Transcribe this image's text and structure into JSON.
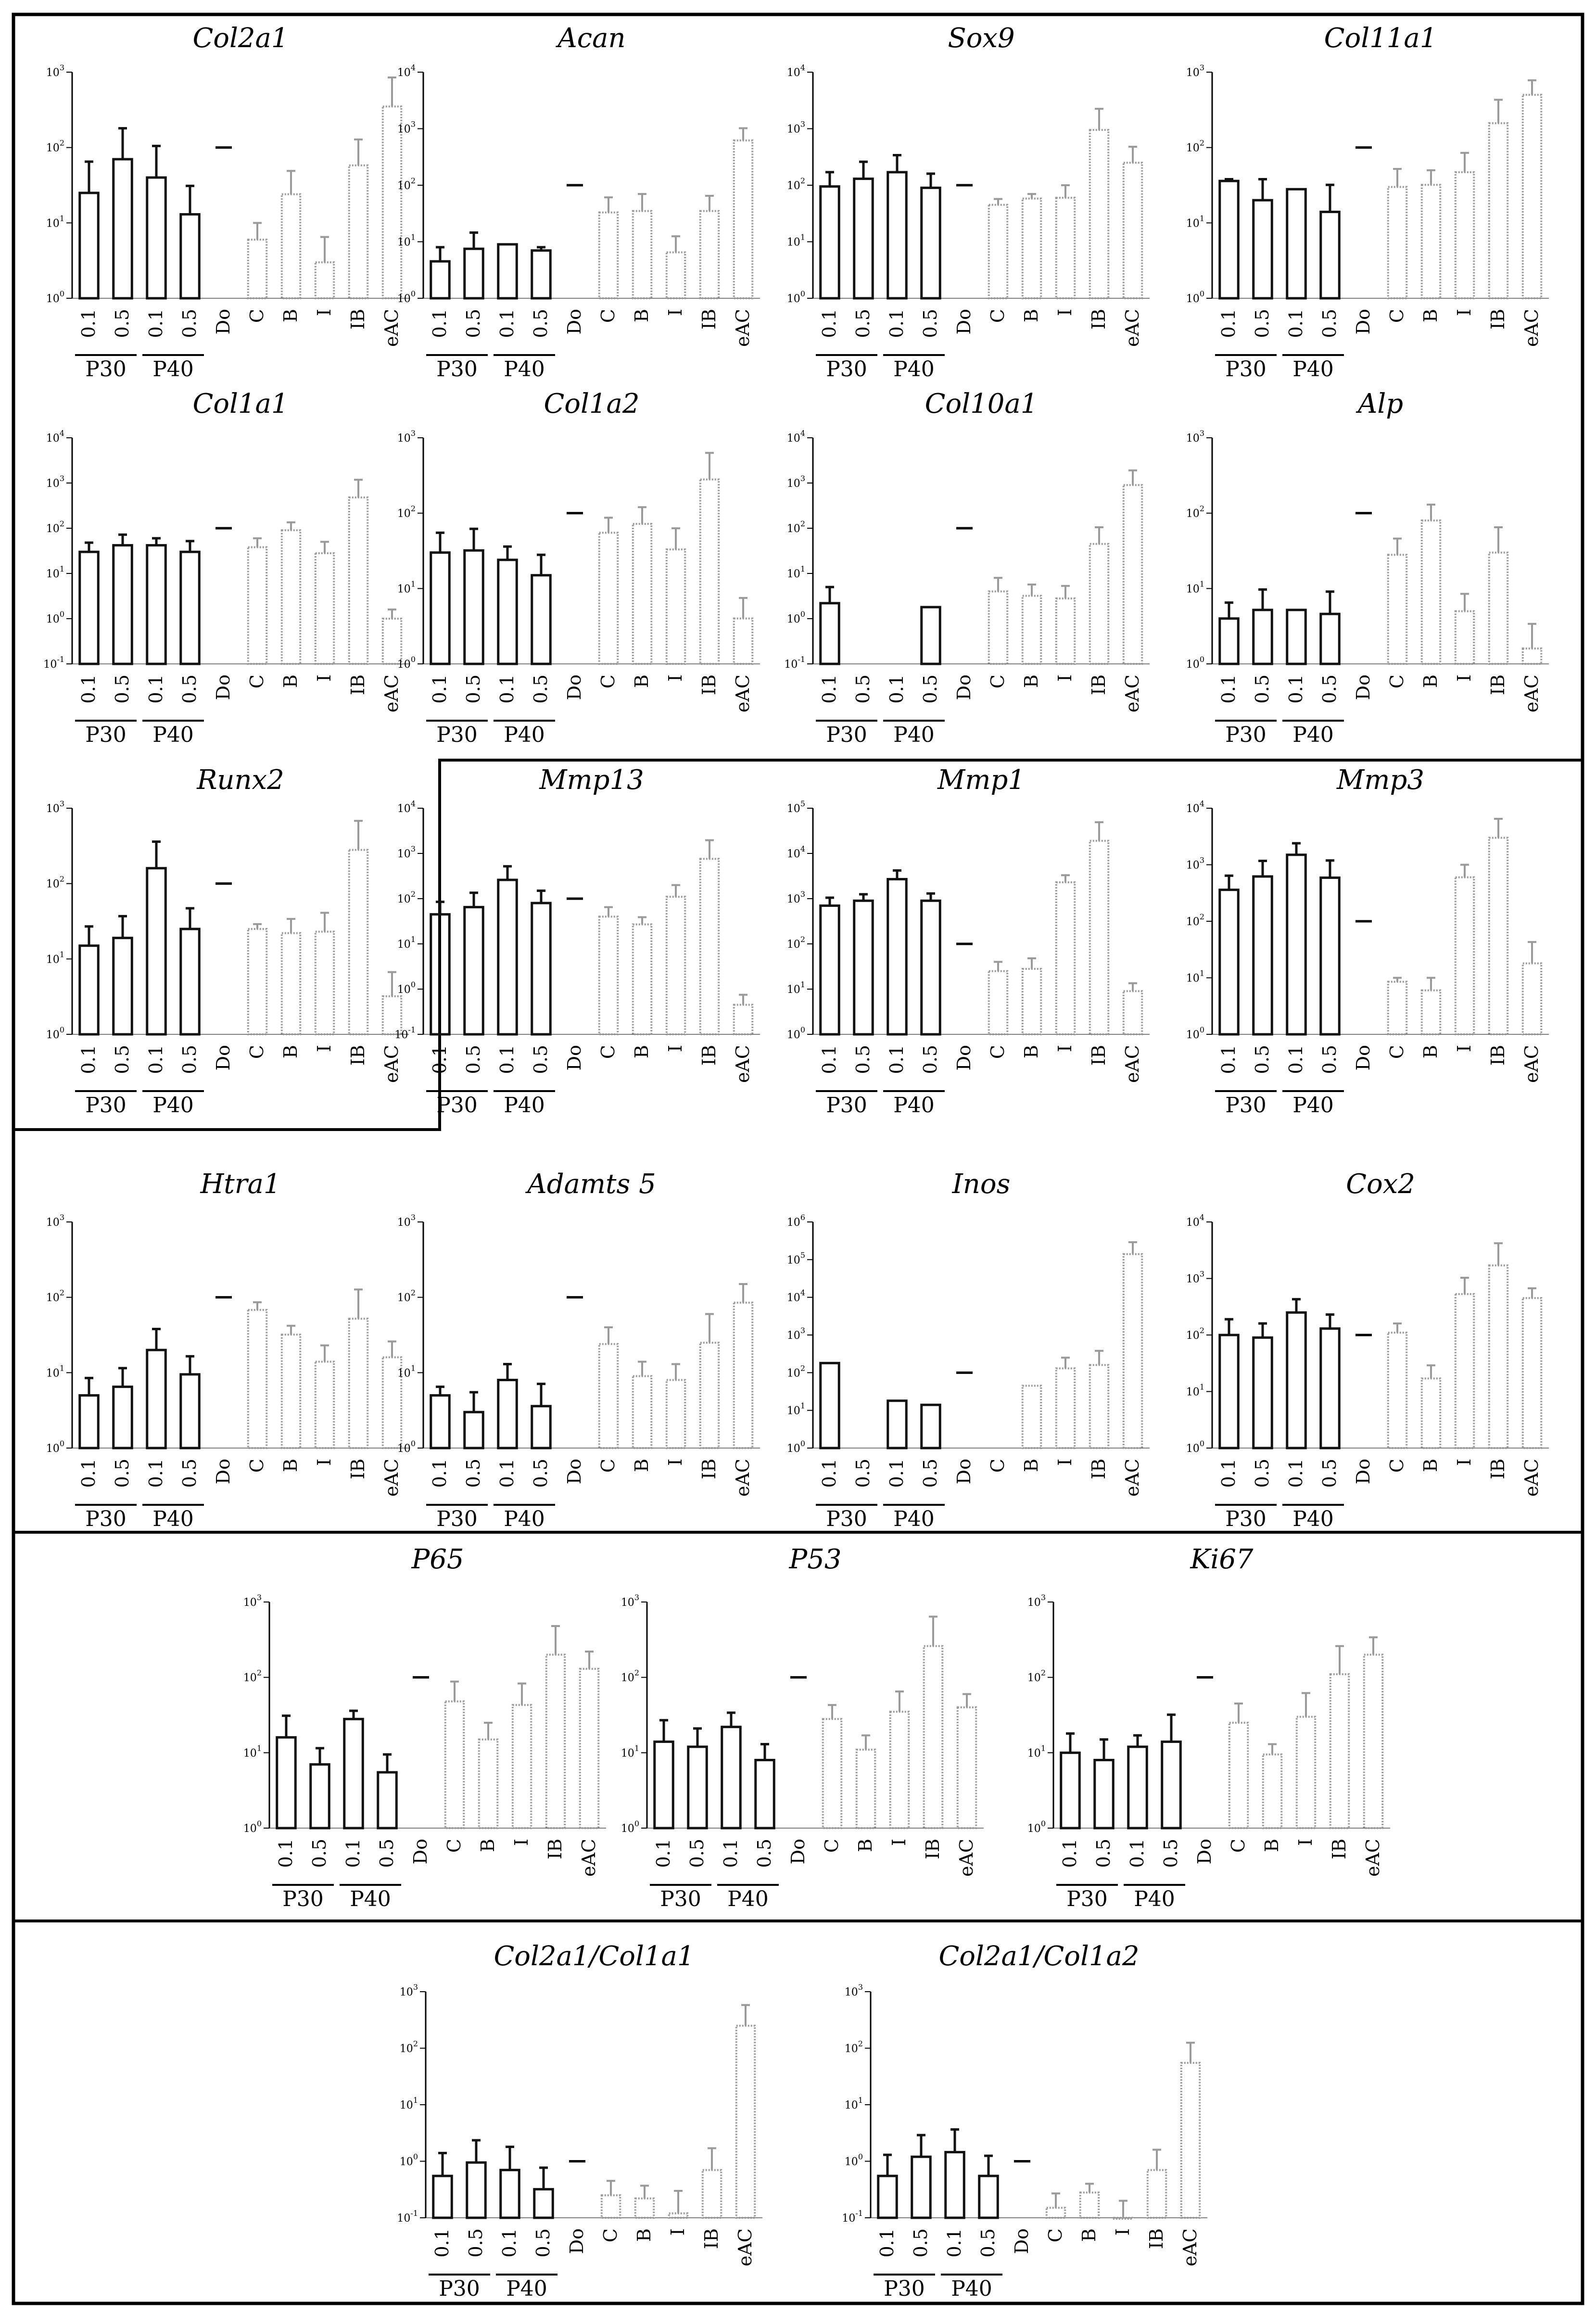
{
  "chart_data": [
    {
      "type": "bar",
      "title": "Col2a1",
      "scale": "log",
      "ylim_exp": [
        0,
        3
      ],
      "categories": [
        "0.1",
        "0.5",
        "0.1",
        "0.5",
        "Do",
        "C",
        "B",
        "I",
        "IB",
        "eAC"
      ],
      "groups": [
        "P30",
        "P40"
      ],
      "values": [
        25,
        70,
        40,
        13,
        100,
        6,
        24,
        3,
        58,
        350
      ],
      "errors": [
        40,
        110,
        65,
        18,
        0,
        4,
        25,
        3.5,
        70,
        500
      ]
    },
    {
      "type": "bar",
      "title": "Acan",
      "scale": "log",
      "ylim_exp": [
        0,
        4
      ],
      "categories": [
        "0.1",
        "0.5",
        "0.1",
        "0.5",
        "Do",
        "C",
        "B",
        "I",
        "IB",
        "eAC"
      ],
      "groups": [
        "P30",
        "P40"
      ],
      "values": [
        4.5,
        7.5,
        9,
        7,
        100,
        33,
        35,
        6.5,
        35,
        620
      ],
      "errors": [
        3.5,
        7,
        0,
        1,
        0,
        28,
        35,
        6,
        30,
        400
      ]
    },
    {
      "type": "bar",
      "title": "Sox9",
      "scale": "log",
      "ylim_exp": [
        0,
        4
      ],
      "categories": [
        "0.1",
        "0.5",
        "0.1",
        "0.5",
        "Do",
        "C",
        "B",
        "I",
        "IB",
        "eAC"
      ],
      "groups": [
        "P30",
        "P40"
      ],
      "values": [
        95,
        130,
        170,
        90,
        100,
        45,
        58,
        60,
        950,
        250
      ],
      "errors": [
        75,
        130,
        170,
        70,
        0,
        12,
        12,
        40,
        1300,
        230
      ]
    },
    {
      "type": "bar",
      "title": "Col11a1",
      "scale": "log",
      "ylim_exp": [
        0,
        3
      ],
      "categories": [
        "0.1",
        "0.5",
        "0.1",
        "0.5",
        "Do",
        "C",
        "B",
        "I",
        "IB",
        "eAC"
      ],
      "groups": [
        "P30",
        "P40"
      ],
      "values": [
        36,
        20,
        28,
        14,
        100,
        30,
        32,
        47,
        210,
        500
      ],
      "errors": [
        2,
        18,
        0,
        18,
        0,
        22,
        18,
        38,
        220,
        280
      ]
    },
    {
      "type": "bar",
      "title": "Col1a1",
      "scale": "log",
      "ylim_exp": [
        -1,
        4
      ],
      "categories": [
        "0.1",
        "0.5",
        "0.1",
        "0.5",
        "Do",
        "C",
        "B",
        "I",
        "IB",
        "eAC"
      ],
      "groups": [
        "P30",
        "P40"
      ],
      "values": [
        30,
        42,
        42,
        30,
        100,
        38,
        90,
        28,
        480,
        1.0
      ],
      "errors": [
        18,
        30,
        18,
        22,
        0,
        22,
        45,
        22,
        700,
        0.6
      ]
    },
    {
      "type": "bar",
      "title": "Col1a2",
      "scale": "log",
      "ylim_exp": [
        0,
        3
      ],
      "categories": [
        "0.1",
        "0.5",
        "0.1",
        "0.5",
        "Do",
        "C",
        "B",
        "I",
        "IB",
        "eAC"
      ],
      "groups": [
        "P30",
        "P40"
      ],
      "values": [
        30,
        32,
        24,
        15,
        100,
        55,
        72,
        33,
        280,
        4
      ],
      "errors": [
        25,
        30,
        12,
        13,
        0,
        32,
        48,
        30,
        350,
        3.5
      ]
    },
    {
      "type": "bar",
      "title": "Col10a1",
      "scale": "log",
      "ylim_exp": [
        -1,
        4
      ],
      "categories": [
        "0.1",
        "0.5",
        "0.1",
        "0.5",
        "Do",
        "C",
        "B",
        "I",
        "IB",
        "eAC"
      ],
      "groups": [
        "P30",
        "P40"
      ],
      "values": [
        2.2,
        null,
        null,
        1.8,
        100,
        4,
        3.2,
        2.8,
        45,
        900
      ],
      "errors": [
        2.8,
        0,
        0,
        0,
        0,
        4,
        2.5,
        2.5,
        60,
        1000
      ]
    },
    {
      "type": "bar",
      "title": "Alp",
      "scale": "log",
      "ylim_exp": [
        0,
        3
      ],
      "categories": [
        "0.1",
        "0.5",
        "0.1",
        "0.5",
        "Do",
        "C",
        "B",
        "I",
        "IB",
        "eAC"
      ],
      "groups": [
        "P30",
        "P40"
      ],
      "values": [
        4,
        5.2,
        5.2,
        4.6,
        100,
        28,
        80,
        5,
        30,
        1.6
      ],
      "errors": [
        2.5,
        4.5,
        0,
        4.5,
        0,
        18,
        50,
        3.5,
        35,
        1.8
      ]
    },
    {
      "type": "bar",
      "title": "Runx2",
      "scale": "log",
      "ylim_exp": [
        0,
        3
      ],
      "categories": [
        "0.1",
        "0.5",
        "0.1",
        "0.5",
        "Do",
        "C",
        "B",
        "I",
        "IB",
        "eAC"
      ],
      "groups": [
        "P30",
        "P40"
      ],
      "values": [
        15,
        19,
        160,
        25,
        100,
        25,
        22,
        23,
        280,
        3.2
      ],
      "errors": [
        12,
        18,
        200,
        22,
        0,
        4,
        12,
        18,
        400,
        3.5
      ]
    },
    {
      "type": "bar",
      "title": "Mmp13",
      "scale": "log",
      "ylim_exp": [
        -1,
        4
      ],
      "categories": [
        "0.1",
        "0.5",
        "0.1",
        "0.5",
        "Do",
        "C",
        "B",
        "I",
        "IB",
        "eAC"
      ],
      "groups": [
        "P30",
        "P40"
      ],
      "values": [
        45,
        65,
        260,
        80,
        100,
        40,
        27,
        110,
        760,
        0.45
      ],
      "errors": [
        40,
        70,
        260,
        70,
        0,
        25,
        12,
        90,
        1200,
        0.3
      ]
    },
    {
      "type": "bar",
      "title": "Mmp1",
      "scale": "log",
      "ylim_exp": [
        0,
        5
      ],
      "categories": [
        "0.1",
        "0.5",
        "0.1",
        "0.5",
        "Do",
        "C",
        "B",
        "I",
        "IB",
        "eAC"
      ],
      "groups": [
        "P30",
        "P40"
      ],
      "values": [
        700,
        900,
        2700,
        900,
        100,
        25,
        28,
        2300,
        19000,
        9
      ],
      "errors": [
        350,
        350,
        1500,
        400,
        0,
        15,
        20,
        1000,
        30000,
        4.5
      ]
    },
    {
      "type": "bar",
      "title": "Mmp3",
      "scale": "log",
      "ylim_exp": [
        0,
        4
      ],
      "categories": [
        "0.1",
        "0.5",
        "0.1",
        "0.5",
        "Do",
        "C",
        "B",
        "I",
        "IB",
        "eAC"
      ],
      "groups": [
        "P30",
        "P40"
      ],
      "values": [
        360,
        620,
        1500,
        590,
        100,
        8.5,
        6,
        600,
        3000,
        18
      ],
      "errors": [
        280,
        550,
        900,
        600,
        0,
        1.5,
        4,
        400,
        3500,
        25
      ]
    },
    {
      "type": "bar",
      "title": "Htra1",
      "scale": "log",
      "ylim_exp": [
        0,
        3
      ],
      "categories": [
        "0.1",
        "0.5",
        "0.1",
        "0.5",
        "Do",
        "C",
        "B",
        "I",
        "IB",
        "eAC"
      ],
      "groups": [
        "P30",
        "P40"
      ],
      "values": [
        5,
        6.5,
        20,
        9.5,
        100,
        68,
        32,
        14,
        52,
        16
      ],
      "errors": [
        3.5,
        5,
        18,
        7,
        0,
        18,
        10,
        9,
        75,
        10
      ]
    },
    {
      "type": "bar",
      "title": "Adamts 5",
      "scale": "log",
      "ylim_exp": [
        0,
        3
      ],
      "categories": [
        "0.1",
        "0.5",
        "0.1",
        "0.5",
        "Do",
        "C",
        "B",
        "I",
        "IB",
        "eAC"
      ],
      "groups": [
        "P30",
        "P40"
      ],
      "values": [
        5,
        3,
        8,
        3.6,
        100,
        24,
        9,
        8,
        25,
        85
      ],
      "errors": [
        1.5,
        2.5,
        5,
        3.5,
        0,
        16,
        5,
        5,
        35,
        65
      ]
    },
    {
      "type": "bar",
      "title": "Inos",
      "scale": "log",
      "ylim_exp": [
        0,
        6
      ],
      "categories": [
        "0.1",
        "0.5",
        "0.1",
        "0.5",
        "Do",
        "C",
        "B",
        "I",
        "IB",
        "eAC"
      ],
      "groups": [
        "P30",
        "P40"
      ],
      "values": [
        180,
        null,
        18,
        14,
        100,
        null,
        45,
        130,
        160,
        140000
      ],
      "errors": [
        0,
        0,
        0,
        0,
        0,
        0,
        0,
        120,
        220,
        150000
      ]
    },
    {
      "type": "bar",
      "title": "Cox2",
      "scale": "log",
      "ylim_exp": [
        0,
        4
      ],
      "categories": [
        "0.1",
        "0.5",
        "0.1",
        "0.5",
        "Do",
        "C",
        "B",
        "I",
        "IB",
        "eAC"
      ],
      "groups": [
        "P30",
        "P40"
      ],
      "values": [
        100,
        90,
        250,
        130,
        100,
        110,
        17,
        530,
        1700,
        450
      ],
      "errors": [
        90,
        70,
        180,
        100,
        0,
        50,
        12,
        500,
        2500,
        220
      ]
    },
    {
      "type": "bar",
      "title": "P65",
      "scale": "log",
      "ylim_exp": [
        0,
        3
      ],
      "categories": [
        "0.1",
        "0.5",
        "0.1",
        "0.5",
        "Do",
        "C",
        "B",
        "I",
        "IB",
        "eAC"
      ],
      "groups": [
        "P30",
        "P40"
      ],
      "values": [
        16,
        7,
        28,
        5.5,
        100,
        48,
        15,
        43,
        200,
        130
      ],
      "errors": [
        15,
        4.5,
        8,
        4,
        0,
        40,
        10,
        40,
        280,
        90
      ]
    },
    {
      "type": "bar",
      "title": "P53",
      "scale": "log",
      "ylim_exp": [
        0,
        3
      ],
      "categories": [
        "0.1",
        "0.5",
        "0.1",
        "0.5",
        "Do",
        "C",
        "B",
        "I",
        "IB",
        "eAC"
      ],
      "groups": [
        "P30",
        "P40"
      ],
      "values": [
        14,
        12,
        22,
        8,
        100,
        28,
        11,
        35,
        260,
        40
      ],
      "errors": [
        13,
        9,
        12,
        5,
        0,
        15,
        6,
        30,
        380,
        20
      ]
    },
    {
      "type": "bar",
      "title": "Ki67",
      "scale": "log",
      "ylim_exp": [
        0,
        3
      ],
      "categories": [
        "0.1",
        "0.5",
        "0.1",
        "0.5",
        "Do",
        "C",
        "B",
        "I",
        "IB",
        "eAC"
      ],
      "groups": [
        "P30",
        "P40"
      ],
      "values": [
        10,
        8,
        12,
        14,
        100,
        25,
        9.5,
        30,
        110,
        200
      ],
      "errors": [
        8,
        7,
        5,
        18,
        0,
        20,
        3.5,
        32,
        150,
        140
      ]
    },
    {
      "type": "bar",
      "title": "Col2a1/Col1a1",
      "scale": "log",
      "ylim_exp": [
        -1,
        3
      ],
      "categories": [
        "0.1",
        "0.5",
        "0.1",
        "0.5",
        "Do",
        "C",
        "B",
        "I",
        "IB",
        "eAC"
      ],
      "groups": [
        "P30",
        "P40"
      ],
      "values": [
        0.55,
        0.95,
        0.7,
        0.32,
        1,
        0.25,
        0.22,
        0.12,
        0.7,
        250
      ],
      "errors": [
        0.85,
        1.4,
        1.1,
        0.45,
        0,
        0.2,
        0.15,
        0.18,
        1.0,
        330
      ]
    },
    {
      "type": "bar",
      "title": "Col2a1/Col1a2",
      "scale": "log",
      "ylim_exp": [
        -1,
        3
      ],
      "categories": [
        "0.1",
        "0.5",
        "0.1",
        "0.5",
        "Do",
        "C",
        "B",
        "I",
        "IB",
        "eAC"
      ],
      "groups": [
        "P30",
        "P40"
      ],
      "values": [
        0.55,
        1.2,
        1.45,
        0.55,
        1,
        0.15,
        0.28,
        0.1,
        0.7,
        55
      ],
      "errors": [
        0.75,
        1.7,
        2.2,
        0.7,
        0,
        0.12,
        0.12,
        0.1,
        0.9,
        70
      ]
    }
  ]
}
